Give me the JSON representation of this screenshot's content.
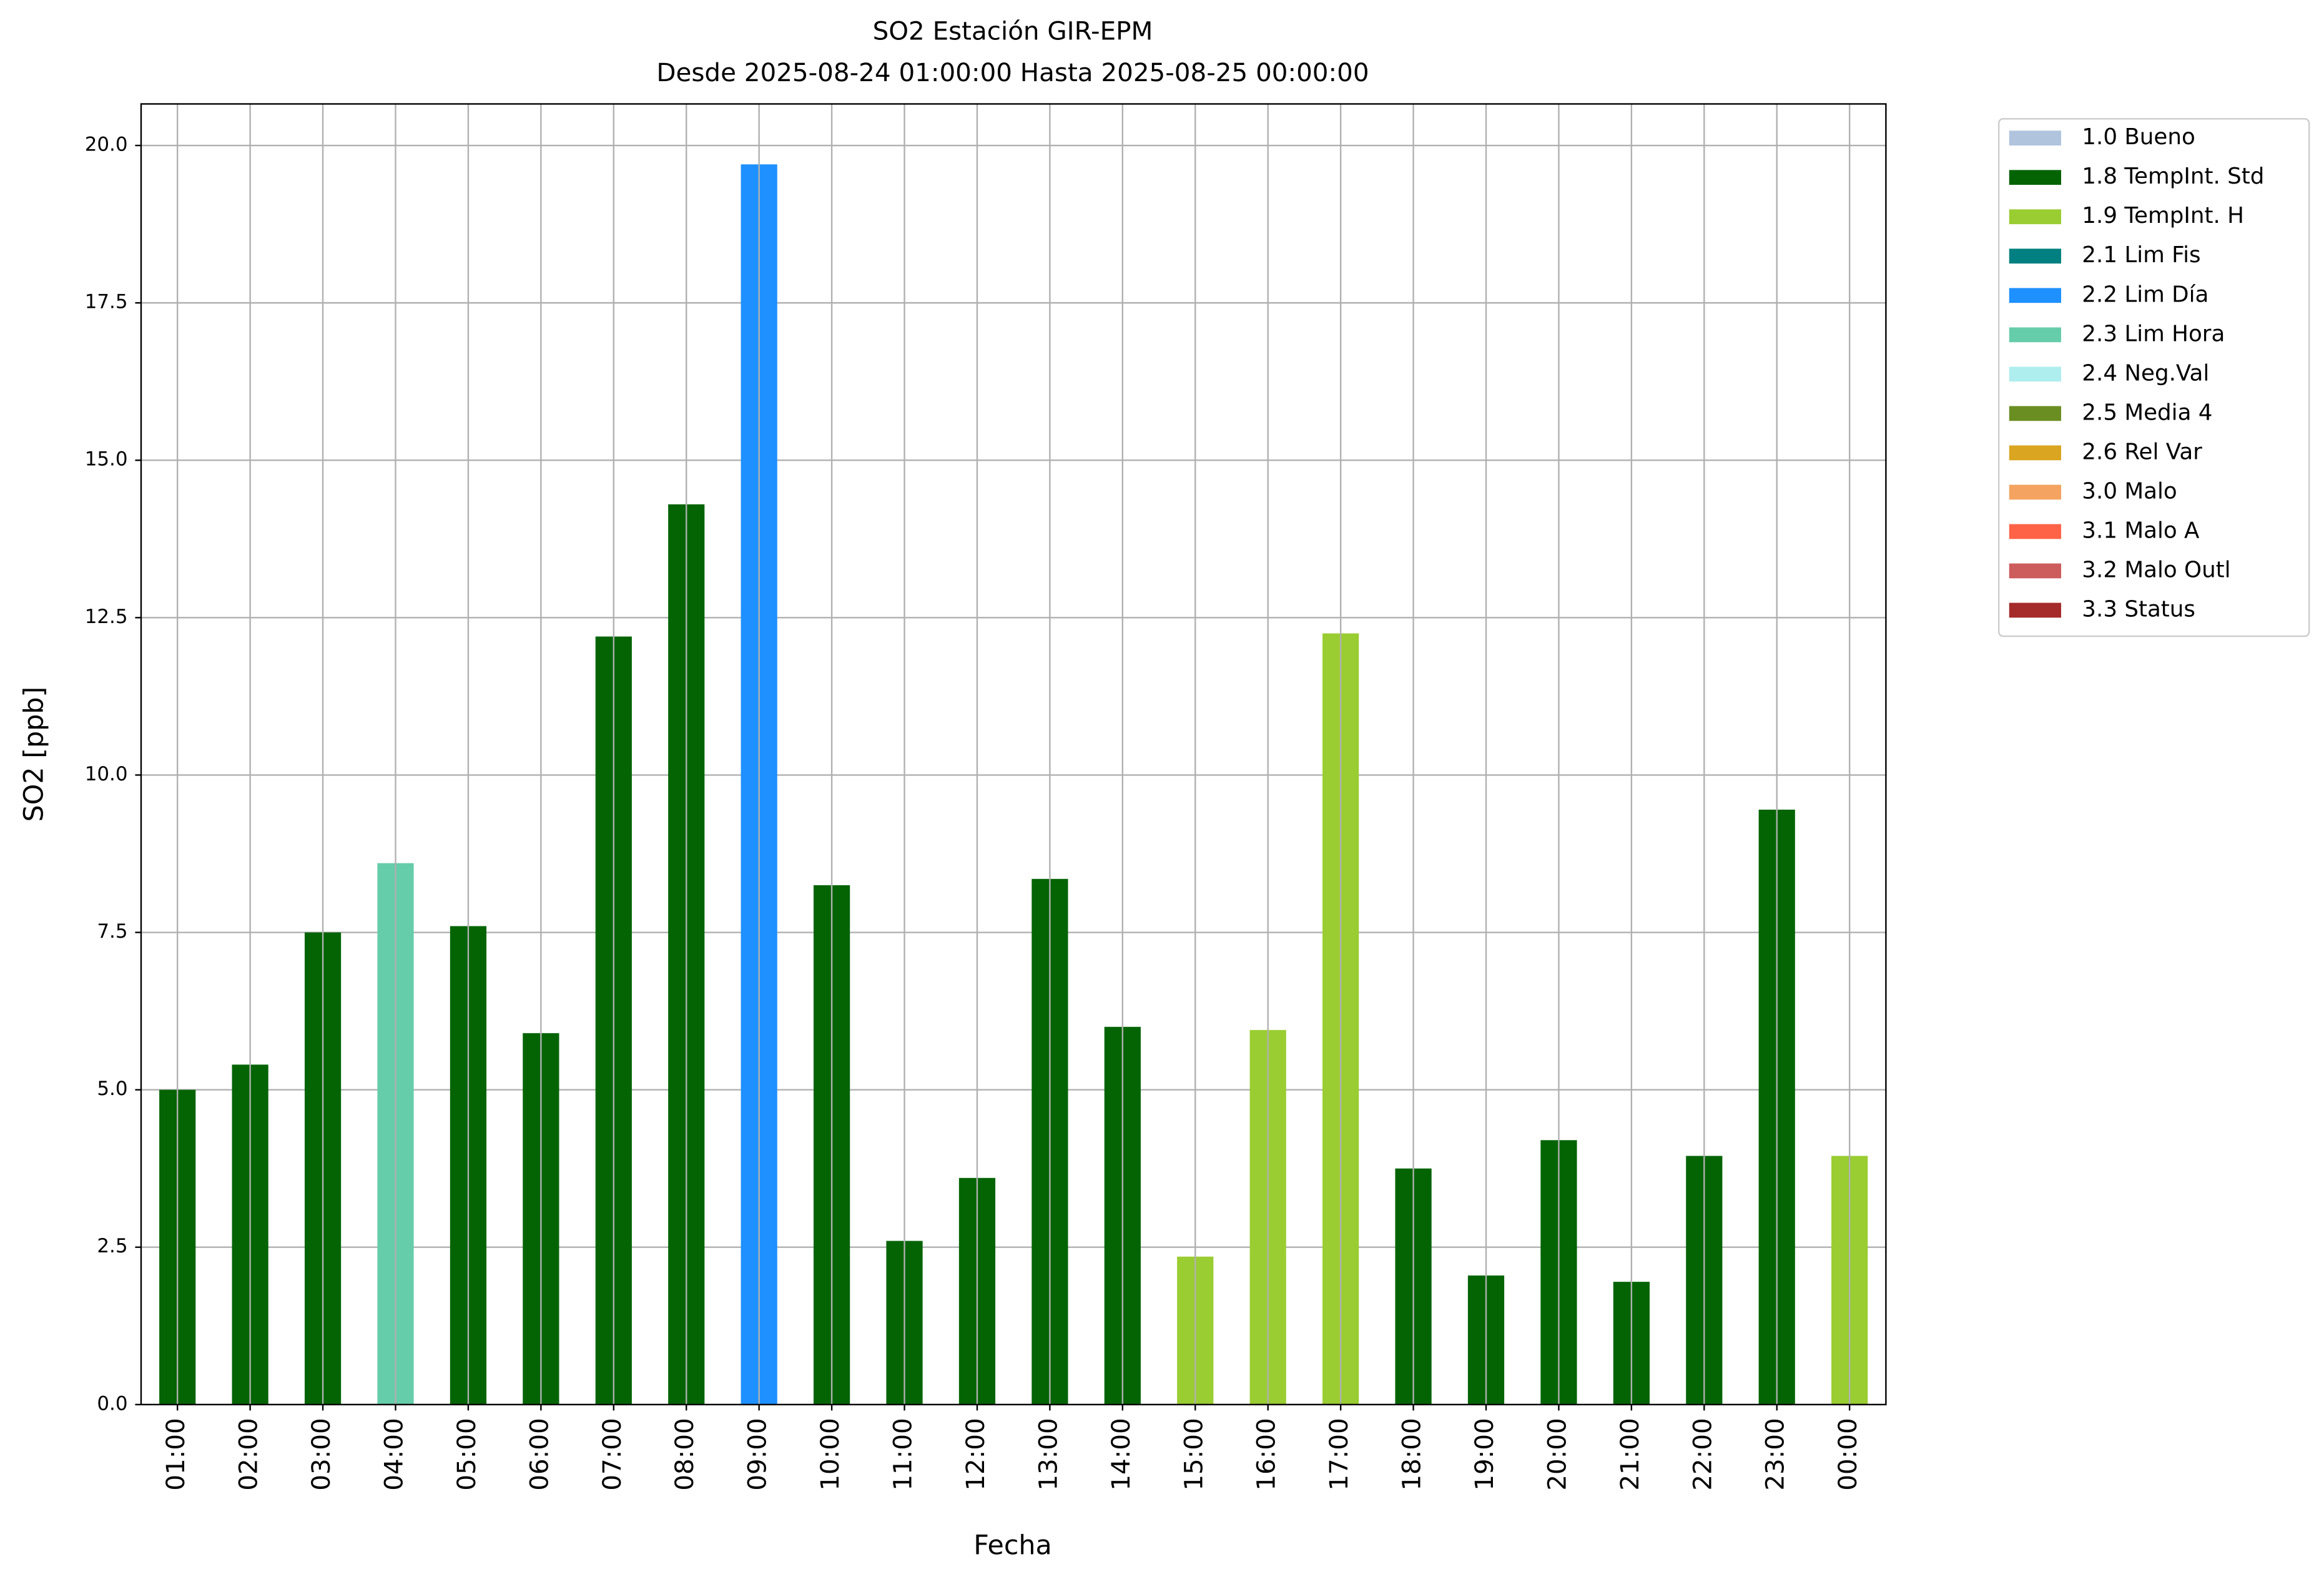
{
  "chart_data": {
    "type": "bar",
    "title": "SO2 Estación GIR-EPM",
    "subtitle": "Desde 2025-08-24 01:00:00 Hasta 2025-08-25 00:00:00",
    "x_label": "Fecha",
    "y_label": "SO2 [ppb]",
    "categories": [
      "01:00",
      "02:00",
      "03:00",
      "04:00",
      "05:00",
      "06:00",
      "07:00",
      "08:00",
      "09:00",
      "10:00",
      "11:00",
      "12:00",
      "13:00",
      "14:00",
      "15:00",
      "16:00",
      "17:00",
      "18:00",
      "19:00",
      "20:00",
      "21:00",
      "22:00",
      "23:00",
      "00:00"
    ],
    "series": [
      {
        "name": "1.0 Bueno",
        "color": "#b0c4de",
        "values": [
          null,
          null,
          null,
          null,
          null,
          null,
          null,
          null,
          null,
          null,
          null,
          null,
          null,
          null,
          null,
          null,
          null,
          null,
          null,
          null,
          null,
          null,
          null,
          null
        ]
      },
      {
        "name": "1.8 TempInt. Std",
        "color": "#046404",
        "values": [
          5.0,
          5.4,
          7.5,
          null,
          7.6,
          5.9,
          12.2,
          14.3,
          null,
          8.25,
          2.6,
          3.6,
          8.35,
          6.0,
          null,
          null,
          null,
          3.75,
          2.05,
          4.2,
          1.95,
          3.95,
          9.45,
          null
        ]
      },
      {
        "name": "1.9 TempInt. H",
        "color": "#9acd32",
        "values": [
          null,
          null,
          null,
          null,
          null,
          null,
          null,
          null,
          null,
          null,
          null,
          null,
          null,
          null,
          2.35,
          5.95,
          12.25,
          null,
          null,
          null,
          null,
          null,
          null,
          3.95
        ]
      },
      {
        "name": "2.1 Lim Fis",
        "color": "#008080",
        "values": [
          null,
          null,
          null,
          null,
          null,
          null,
          null,
          null,
          null,
          null,
          null,
          null,
          null,
          null,
          null,
          null,
          null,
          null,
          null,
          null,
          null,
          null,
          null,
          null
        ]
      },
      {
        "name": "2.2 Lim Día",
        "color": "#1e90ff",
        "values": [
          null,
          null,
          null,
          null,
          null,
          null,
          null,
          null,
          19.7,
          null,
          null,
          null,
          null,
          null,
          null,
          null,
          null,
          null,
          null,
          null,
          null,
          null,
          null,
          null
        ]
      },
      {
        "name": "2.3 Lim Hora",
        "color": "#66cdaa",
        "values": [
          null,
          null,
          null,
          8.6,
          null,
          null,
          null,
          null,
          null,
          null,
          null,
          null,
          null,
          null,
          null,
          null,
          null,
          null,
          null,
          null,
          null,
          null,
          null,
          null
        ]
      },
      {
        "name": "2.4 Neg.Val",
        "color": "#afeeee",
        "values": [
          null,
          null,
          null,
          null,
          null,
          null,
          null,
          null,
          null,
          null,
          null,
          null,
          null,
          null,
          null,
          null,
          null,
          null,
          null,
          null,
          null,
          null,
          null,
          null
        ]
      },
      {
        "name": "2.5 Media 4",
        "color": "#6b8e23",
        "values": [
          null,
          null,
          null,
          null,
          null,
          null,
          null,
          null,
          null,
          null,
          null,
          null,
          null,
          null,
          null,
          null,
          null,
          null,
          null,
          null,
          null,
          null,
          null,
          null
        ]
      },
      {
        "name": "2.6 Rel Var",
        "color": "#daa520",
        "values": [
          null,
          null,
          null,
          null,
          null,
          null,
          null,
          null,
          null,
          null,
          null,
          null,
          null,
          null,
          null,
          null,
          null,
          null,
          null,
          null,
          null,
          null,
          null,
          null
        ]
      },
      {
        "name": "3.0 Malo",
        "color": "#f4a460",
        "values": [
          null,
          null,
          null,
          null,
          null,
          null,
          null,
          null,
          null,
          null,
          null,
          null,
          null,
          null,
          null,
          null,
          null,
          null,
          null,
          null,
          null,
          null,
          null,
          null
        ]
      },
      {
        "name": "3.1 Malo A",
        "color": "#ff6347",
        "values": [
          null,
          null,
          null,
          null,
          null,
          null,
          null,
          null,
          null,
          null,
          null,
          null,
          null,
          null,
          null,
          null,
          null,
          null,
          null,
          null,
          null,
          null,
          null,
          null
        ]
      },
      {
        "name": "3.2 Malo Outl",
        "color": "#cd5c5c",
        "values": [
          null,
          null,
          null,
          null,
          null,
          null,
          null,
          null,
          null,
          null,
          null,
          null,
          null,
          null,
          null,
          null,
          null,
          null,
          null,
          null,
          null,
          null,
          null,
          null
        ]
      },
      {
        "name": "3.3 Status",
        "color": "#a52a2a",
        "values": [
          null,
          null,
          null,
          null,
          null,
          null,
          null,
          null,
          null,
          null,
          null,
          null,
          null,
          null,
          null,
          null,
          null,
          null,
          null,
          null,
          null,
          null,
          null,
          null
        ]
      }
    ],
    "ylim": [
      0,
      20.66
    ],
    "yticks": [
      {
        "value": 0,
        "label": "0.0"
      },
      2.5,
      {
        "value": 5,
        "label": "5.0"
      },
      7.5,
      {
        "value": 10,
        "label": "10.0"
      },
      12.5,
      {
        "value": 15,
        "label": "15.0"
      },
      17.5,
      {
        "value": 20,
        "label": "20.0"
      }
    ],
    "grid": true,
    "legend": "outside upper right"
  }
}
